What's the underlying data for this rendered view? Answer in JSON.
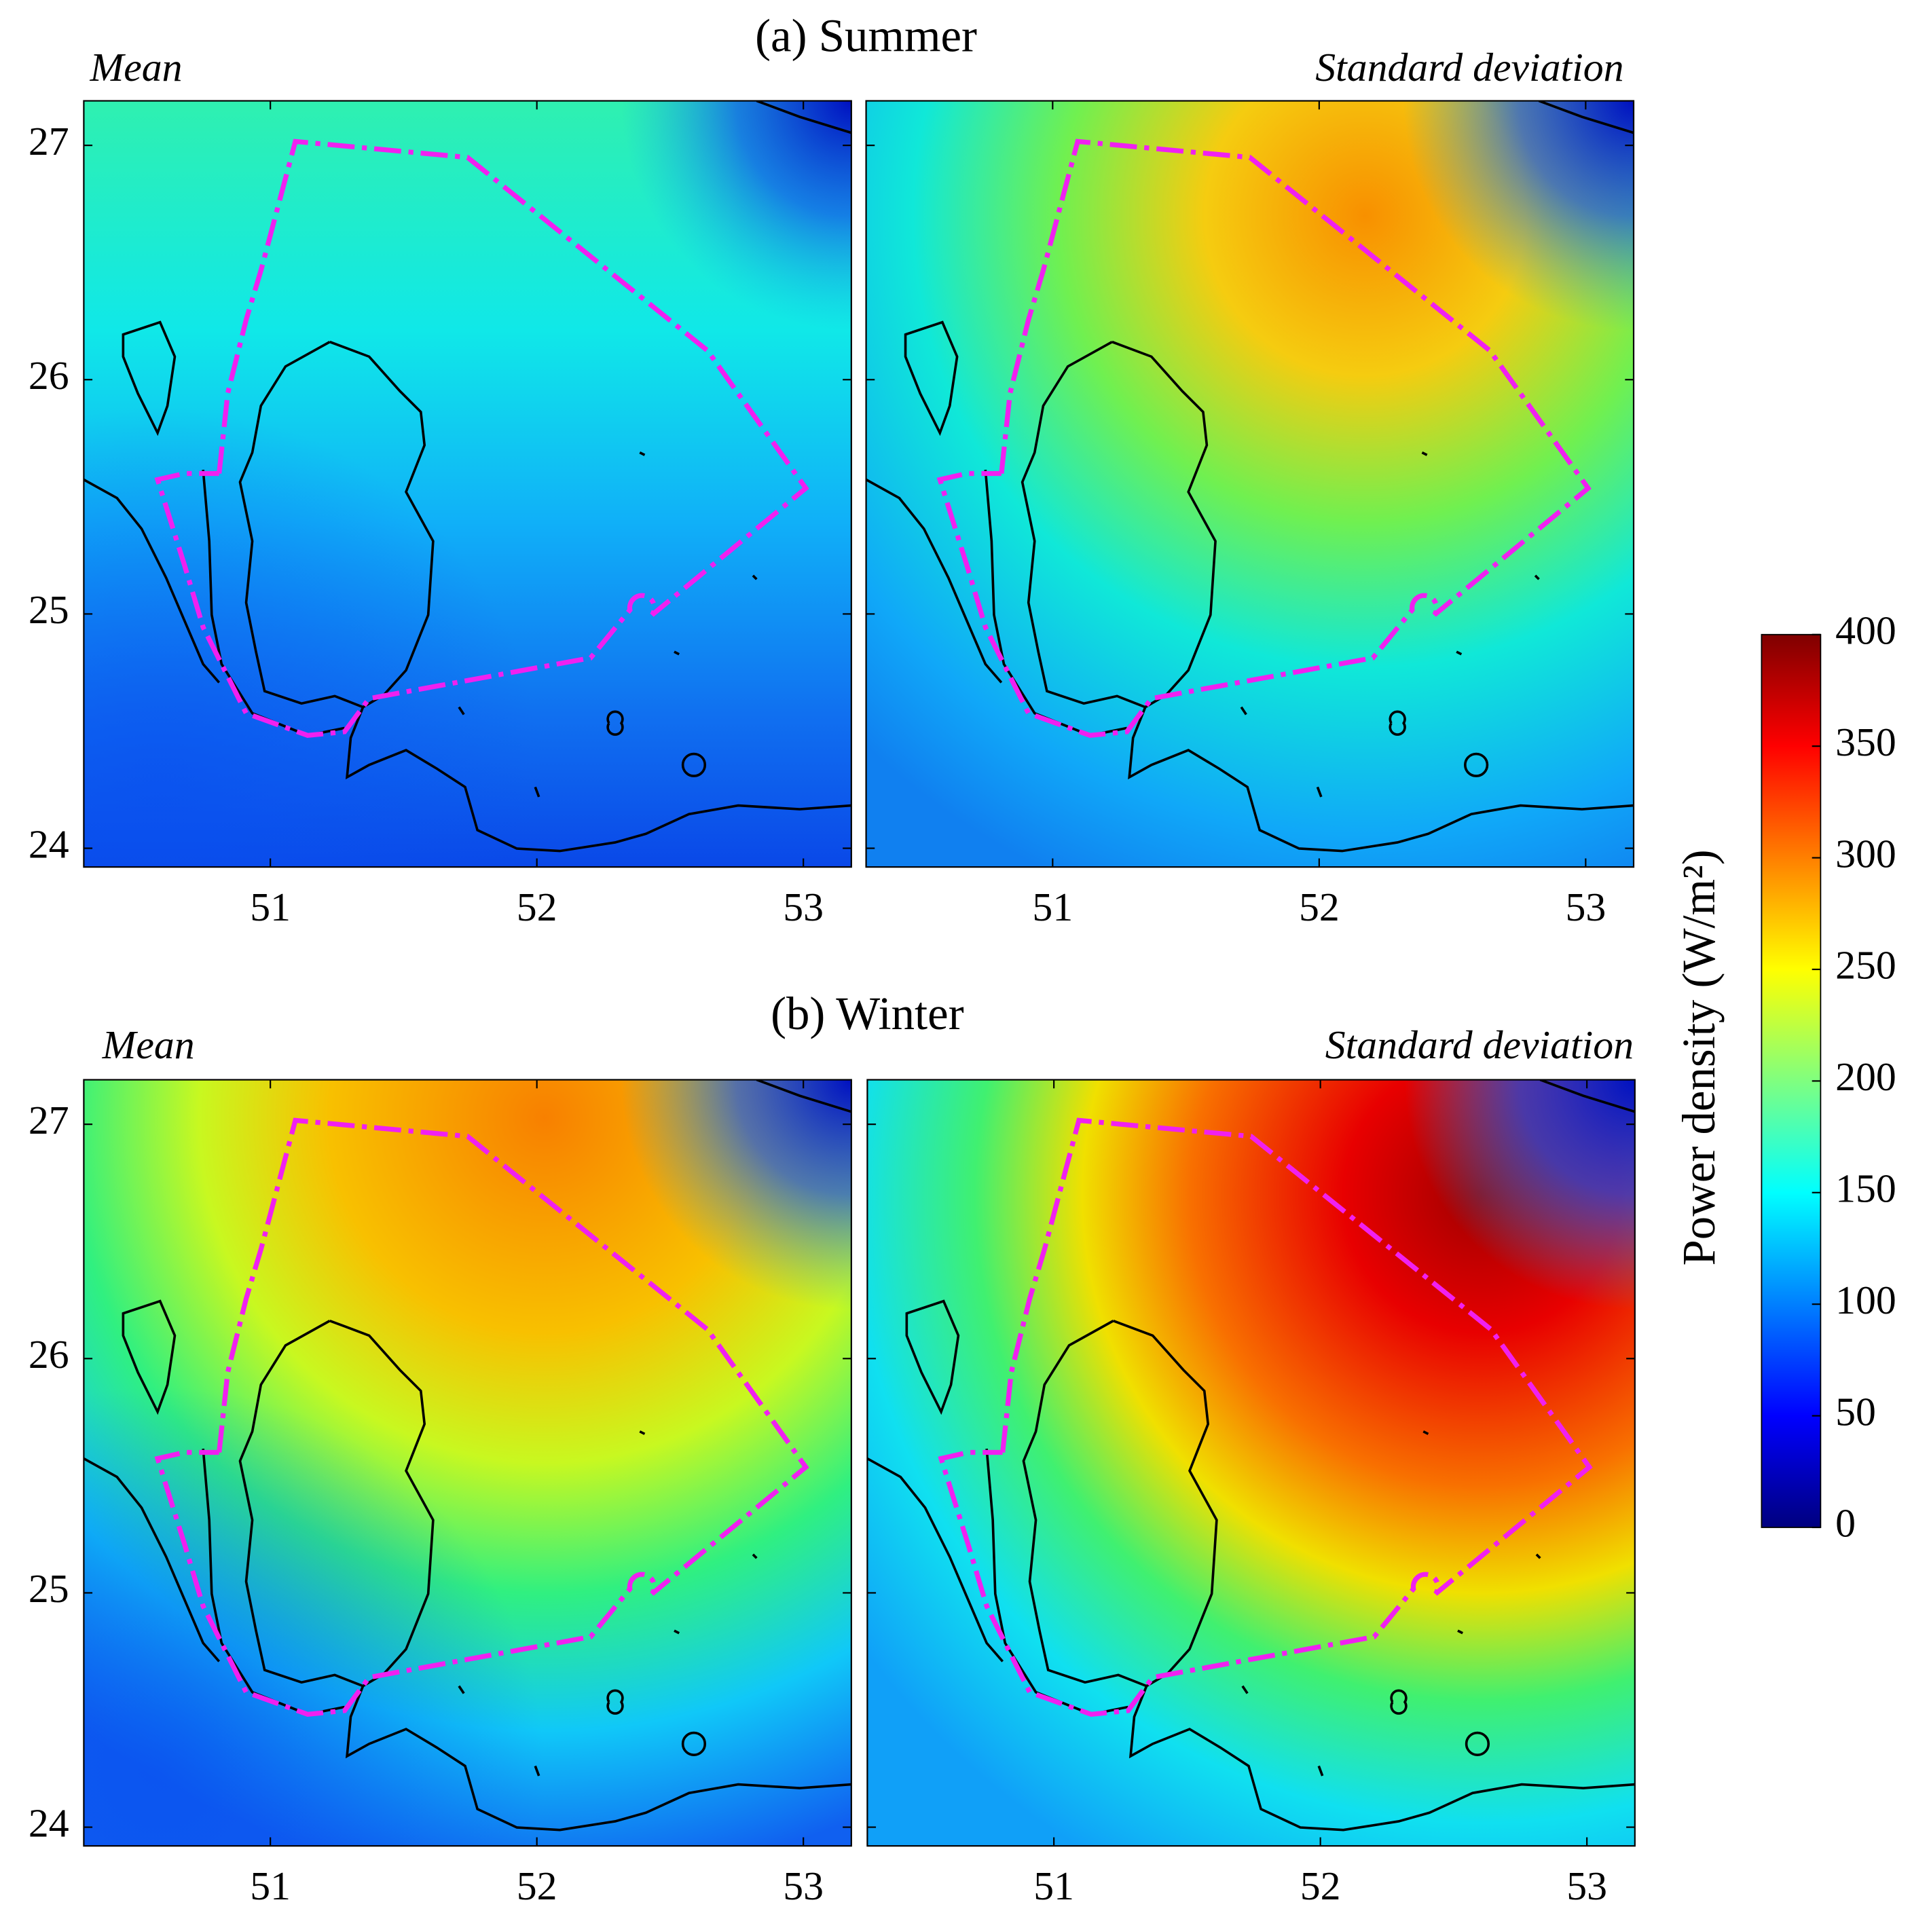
{
  "rows": [
    {
      "title": "(a) Summer",
      "panels": [
        {
          "label": "Mean"
        },
        {
          "label": "Standard deviation"
        }
      ]
    },
    {
      "title": "(b) Winter",
      "panels": [
        {
          "label": "Mean"
        },
        {
          "label": "Standard deviation"
        }
      ]
    }
  ],
  "xaxis": {
    "xlim": [
      50.3,
      53.18
    ],
    "xticks": [
      51,
      52,
      53
    ]
  },
  "yaxis": {
    "ylim": [
      23.92,
      27.19
    ],
    "yticks": [
      24,
      25,
      26,
      27
    ]
  },
  "colorbar": {
    "label": "Power density (W/m²)",
    "lim": [
      0,
      400
    ],
    "ticks": [
      0,
      50,
      100,
      150,
      200,
      250,
      300,
      350,
      400
    ],
    "colormap": "jet"
  }
}
